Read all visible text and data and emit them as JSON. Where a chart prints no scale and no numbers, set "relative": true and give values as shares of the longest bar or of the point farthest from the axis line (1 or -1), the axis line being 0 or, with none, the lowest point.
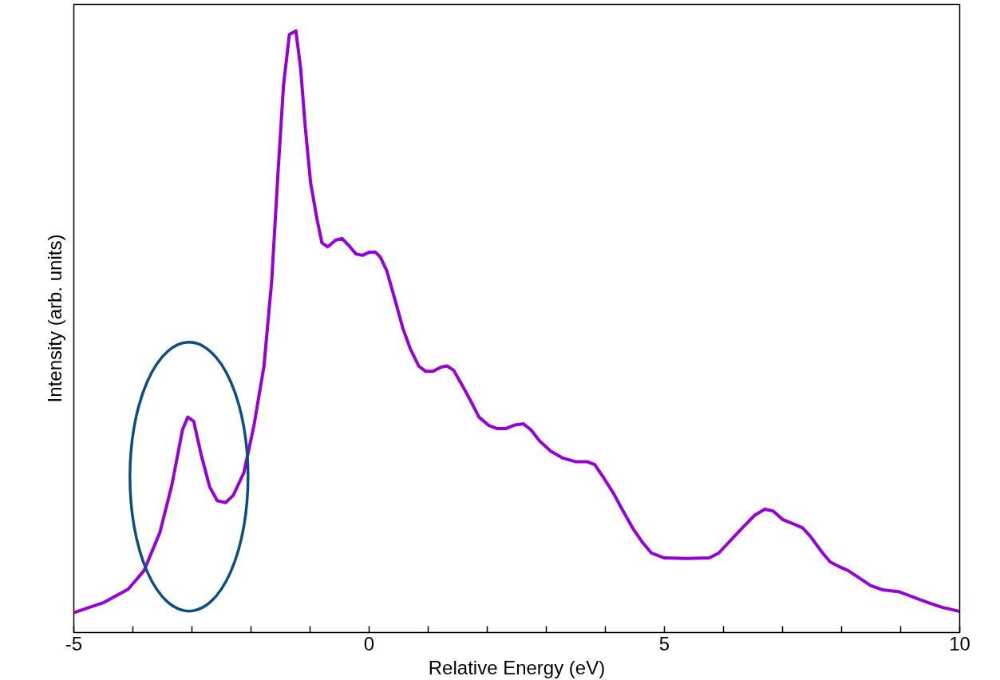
{
  "chart_data": {
    "type": "line",
    "relative": true,
    "xlabel": "Relative Energy (eV)",
    "ylabel": "Intensity (arb. units)",
    "xlim": [
      -5,
      10
    ],
    "xticks": [
      -5,
      {
        "value": -4,
        "label": null
      },
      {
        "value": -3,
        "label": null
      },
      {
        "value": -2,
        "label": null
      },
      {
        "value": -1,
        "label": null
      },
      0,
      {
        "value": 1,
        "label": null
      },
      {
        "value": 2,
        "label": null
      },
      {
        "value": 3,
        "label": null
      },
      {
        "value": 4,
        "label": null
      },
      5,
      {
        "value": 6,
        "label": null
      },
      {
        "value": 7,
        "label": null
      },
      {
        "value": 8,
        "label": null
      },
      {
        "value": 9,
        "label": null
      },
      10
    ],
    "grid": false,
    "marker": "none",
    "line_style": "solid",
    "series": [
      {
        "color": "#9400d3",
        "x": [
          -5.0,
          -4.49,
          -4.08,
          -3.81,
          -3.54,
          -3.34,
          -3.16,
          -3.07,
          -2.97,
          -2.84,
          -2.7,
          -2.57,
          -2.43,
          -2.3,
          -2.12,
          -1.95,
          -1.78,
          -1.65,
          -1.54,
          -1.45,
          -1.35,
          -1.24,
          -1.16,
          -1.08,
          -0.99,
          -0.88,
          -0.8,
          -0.7,
          -0.57,
          -0.46,
          -0.35,
          -0.22,
          -0.11,
          0,
          0.11,
          0.19,
          0.3,
          0.43,
          0.57,
          0.7,
          0.84,
          0.96,
          1.08,
          1.22,
          1.32,
          1.43,
          1.57,
          1.73,
          1.86,
          2.03,
          2.16,
          2.32,
          2.47,
          2.61,
          2.74,
          2.89,
          3.08,
          3.28,
          3.49,
          3.69,
          3.82,
          3.96,
          4.14,
          4.3,
          4.46,
          4.62,
          4.78,
          5.0,
          5.38,
          5.76,
          5.92,
          6.12,
          6.32,
          6.53,
          6.7,
          6.84,
          7.0,
          7.2,
          7.34,
          7.47,
          7.68,
          7.81,
          7.95,
          8.11,
          8.28,
          8.49,
          8.69,
          8.96,
          9.16,
          9.43,
          9.7,
          10.0
        ],
        "values": [
          0.033,
          0.05,
          0.072,
          0.103,
          0.167,
          0.245,
          0.337,
          0.358,
          0.351,
          0.294,
          0.242,
          0.219,
          0.216,
          0.228,
          0.266,
          0.344,
          0.443,
          0.584,
          0.768,
          0.909,
          0.994,
          1,
          0.938,
          0.839,
          0.747,
          0.686,
          0.648,
          0.641,
          0.652,
          0.655,
          0.644,
          0.629,
          0.627,
          0.632,
          0.632,
          0.624,
          0.601,
          0.556,
          0.506,
          0.471,
          0.443,
          0.434,
          0.434,
          0.441,
          0.443,
          0.436,
          0.412,
          0.383,
          0.358,
          0.344,
          0.339,
          0.339,
          0.345,
          0.347,
          0.337,
          0.318,
          0.301,
          0.29,
          0.284,
          0.284,
          0.279,
          0.259,
          0.231,
          0.202,
          0.174,
          0.151,
          0.132,
          0.124,
          0.123,
          0.124,
          0.132,
          0.153,
          0.174,
          0.195,
          0.205,
          0.202,
          0.188,
          0.18,
          0.174,
          0.16,
          0.132,
          0.117,
          0.11,
          0.103,
          0.092,
          0.078,
          0.071,
          0.068,
          0.061,
          0.051,
          0.042,
          0.035
        ]
      }
    ]
  }
}
